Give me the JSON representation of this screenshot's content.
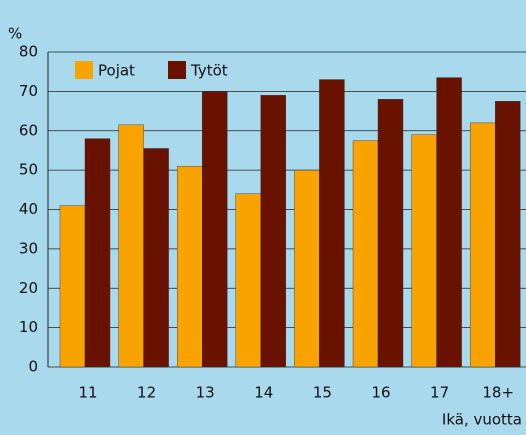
{
  "chart_data": {
    "type": "bar",
    "unit": "%",
    "x_label": "Ikä, vuotta",
    "categories": [
      "11",
      "12",
      "13",
      "14",
      "15",
      "16",
      "17",
      "18+"
    ],
    "series": [
      {
        "name": "Pojat",
        "color": "#f9a300",
        "values": [
          41,
          61.5,
          51,
          44,
          50,
          57.5,
          59,
          62
        ]
      },
      {
        "name": "Tytöt",
        "color": "#6a1200",
        "values": [
          58,
          55.5,
          70,
          69,
          73,
          68,
          73.5,
          67.5
        ]
      }
    ],
    "ylim": [
      0,
      80
    ],
    "yticks": [
      0,
      10,
      20,
      30,
      40,
      50,
      60,
      70,
      80
    ],
    "grid": true,
    "legend": "top-left"
  }
}
